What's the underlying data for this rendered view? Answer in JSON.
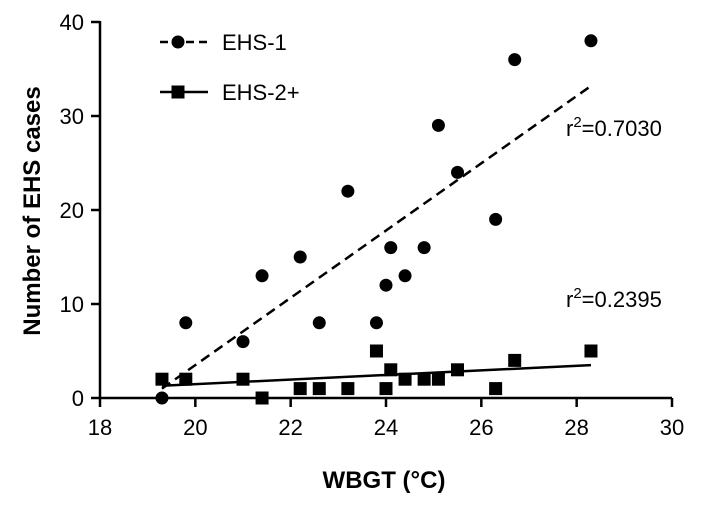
{
  "chart_data": {
    "type": "scatter",
    "xlabel": "WBGT (°C)",
    "ylabel": "Number of EHS cases",
    "xlim": [
      18,
      30
    ],
    "ylim": [
      0,
      40
    ],
    "xticks": [
      18,
      20,
      22,
      24,
      26,
      28,
      30
    ],
    "yticks": [
      0,
      10,
      20,
      30,
      40
    ],
    "grid": false,
    "legend_position": "top-left",
    "series": [
      {
        "name": "EHS-1",
        "marker": "circle",
        "line_style": "dashed",
        "color": "#000000",
        "points": [
          [
            19.3,
            0
          ],
          [
            19.8,
            8
          ],
          [
            21.0,
            6
          ],
          [
            21.4,
            13
          ],
          [
            22.2,
            15
          ],
          [
            22.6,
            8
          ],
          [
            23.2,
            22
          ],
          [
            23.8,
            8
          ],
          [
            24.0,
            12
          ],
          [
            24.1,
            16
          ],
          [
            24.4,
            13
          ],
          [
            24.8,
            16
          ],
          [
            25.1,
            29
          ],
          [
            25.5,
            24
          ],
          [
            26.3,
            19
          ],
          [
            26.7,
            36
          ],
          [
            28.3,
            38
          ]
        ],
        "trend": {
          "x": [
            19.3,
            28.3
          ],
          "y": [
            1.0,
            33.2
          ]
        },
        "r2_label": "r",
        "r2_sup": "2",
        "r2_value": "=0.7030"
      },
      {
        "name": "EHS-2+",
        "marker": "square",
        "line_style": "solid",
        "color": "#000000",
        "points": [
          [
            19.3,
            2
          ],
          [
            19.8,
            2
          ],
          [
            21.0,
            2
          ],
          [
            21.4,
            0
          ],
          [
            22.2,
            1
          ],
          [
            22.6,
            1
          ],
          [
            23.2,
            1
          ],
          [
            23.8,
            5
          ],
          [
            24.0,
            1
          ],
          [
            24.1,
            3
          ],
          [
            24.4,
            2
          ],
          [
            24.8,
            2
          ],
          [
            25.1,
            2
          ],
          [
            25.5,
            3
          ],
          [
            26.3,
            1
          ],
          [
            26.7,
            4
          ],
          [
            28.3,
            5
          ]
        ],
        "trend": {
          "x": [
            19.3,
            28.3
          ],
          "y": [
            1.3,
            3.5
          ]
        },
        "r2_label": "r",
        "r2_sup": "2",
        "r2_value": "=0.2395"
      }
    ]
  }
}
